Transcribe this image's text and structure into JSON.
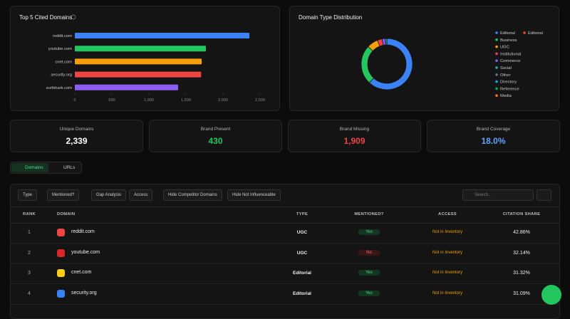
{
  "chart_data": [
    {
      "type": "bar",
      "orientation": "horizontal",
      "title": "Top 5 Cited Domains",
      "categories": [
        "reddit.com",
        "youtube.com",
        "cnet.com",
        "security.org",
        "surfshark.com"
      ],
      "values": [
        2356,
        1769,
        1712,
        1705,
        1394
      ],
      "colors": [
        "#3b82f6",
        "#22c55e",
        "#f59e0b",
        "#ef4444",
        "#8b5cf6"
      ],
      "xlim": [
        0,
        2500
      ],
      "xticks": [
        0,
        500,
        {
          "value": 1000,
          "label": "1,000"
        },
        {
          "value": 1500,
          "label": "1,500"
        },
        {
          "value": 2000,
          "label": "2,000"
        },
        {
          "value": 2500,
          "label": "2,500"
        }
      ]
    },
    {
      "type": "pie",
      "donut": true,
      "title": "Domain Type Distribution",
      "categories": [
        "Editorial",
        "Editorial",
        "Business",
        "UGC",
        "Institutional",
        "Commerce",
        "Social",
        "Other",
        "Directory",
        "Reference",
        "Media"
      ],
      "colors": [
        "#3b82f6",
        "#ef4444",
        "#22c55e",
        "#f59e0b",
        "#ef4444",
        "#8b5cf6",
        "#14b8a6",
        "#6b7280",
        "#0ea5e9",
        "#16a34a",
        "#f97316"
      ],
      "values": [
        62,
        null,
        25,
        7,
        3,
        2,
        1,
        0,
        0,
        0,
        0
      ]
    }
  ],
  "stats": [
    {
      "label": "Unique Domains",
      "value": "2,339"
    },
    {
      "label": "Brand Present",
      "value": "430"
    },
    {
      "label": "Brand Missing",
      "value": "1,909"
    },
    {
      "label": "Brand Coverage",
      "value": "18.0%"
    }
  ],
  "tabs": [
    "Domains",
    "URLs"
  ],
  "filters": [
    "Type",
    "Mentioned?",
    "Gap Analysis",
    "Access",
    "Hide Competitor Domains",
    "Hide Not Influenceable"
  ],
  "search_placeholder": "Search...",
  "table": {
    "headers": [
      "RANK",
      "DOMAIN",
      "TYPE",
      "MENTIONED?",
      "ACCESS",
      "CITATION SHARE"
    ],
    "rows": [
      [
        "1",
        "reddit.com",
        "UGC",
        "Yes",
        "Not in Inventory",
        "42.86%"
      ],
      [
        "2",
        "youtube.com",
        "UGC",
        "No",
        "Not in Inventory",
        "32.14%"
      ],
      [
        "3",
        "cnet.com",
        "Editorial",
        "Yes",
        "Not in Inventory",
        "31.32%"
      ],
      [
        "4",
        "security.org",
        "Editorial",
        "Yes",
        "Not in Inventory",
        "31.09%"
      ]
    ]
  }
}
